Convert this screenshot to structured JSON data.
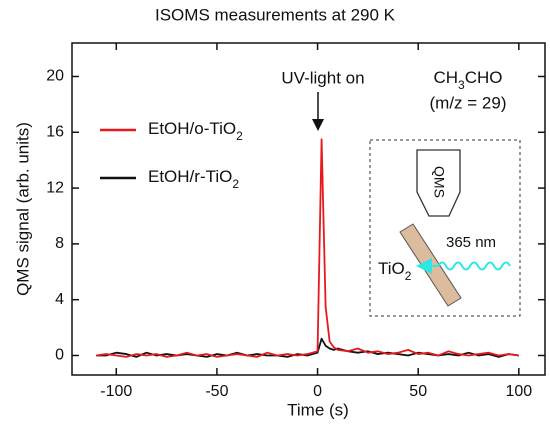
{
  "chart_data": {
    "type": "line",
    "title": "ISOMS measurements at 290 K",
    "x_label": "Time  (s)",
    "y_label": "QMS signal  (arb. units)",
    "x": [
      -110,
      -105,
      -100,
      -95,
      -90,
      -85,
      -80,
      -75,
      -70,
      -65,
      -60,
      -55,
      -50,
      -45,
      -40,
      -35,
      -30,
      -25,
      -20,
      -15,
      -10,
      -5,
      0,
      2,
      4,
      6,
      8,
      10,
      15,
      20,
      25,
      30,
      35,
      40,
      45,
      50,
      55,
      60,
      65,
      70,
      75,
      80,
      85,
      90,
      95,
      100
    ],
    "series": [
      {
        "name": "EtOH/o-TiO2",
        "color": "#e8191c",
        "values": [
          0,
          0.1,
          0,
          -0.1,
          0.1,
          0,
          0.1,
          -0.1,
          0,
          0.2,
          0,
          0.1,
          -0.1,
          0,
          0.1,
          0,
          -0.1,
          0.2,
          0,
          0.1,
          0,
          0.1,
          0.3,
          15.5,
          3.5,
          1.0,
          0.6,
          0.4,
          0.3,
          0.5,
          0.2,
          0.3,
          0.1,
          0.2,
          0.4,
          0.1,
          0.2,
          0,
          0.3,
          0.1,
          0,
          0.1,
          0.2,
          0,
          0.1,
          0
        ]
      },
      {
        "name": "EtOH/r-TiO2",
        "color": "#111111",
        "values": [
          0,
          0,
          0.2,
          0.1,
          -0.1,
          0.2,
          0,
          0.1,
          0,
          0.1,
          0,
          -0.1,
          0.1,
          0,
          0.2,
          0,
          0.1,
          0,
          0,
          -0.1,
          0.1,
          0,
          0.2,
          1.2,
          0.7,
          0.5,
          0.4,
          0.5,
          0.3,
          0.2,
          0.3,
          0.1,
          0.2,
          0.1,
          0,
          0.2,
          0.1,
          0,
          0.1,
          0,
          0.2,
          0,
          0.1,
          -0.1,
          0.1,
          0
        ]
      }
    ],
    "xlim": [
      -122,
      113
    ],
    "ylim": [
      -1.4,
      22.4
    ],
    "xticks": [
      -100,
      -50,
      0,
      50,
      100
    ],
    "yticks": [
      0,
      4,
      8,
      12,
      16,
      20
    ],
    "legend": "upper left",
    "annotations": [
      "UV-light on",
      "CH3CHO",
      "(m/z = 29)",
      "QMS",
      "TiO2",
      "365 nm"
    ]
  }
}
